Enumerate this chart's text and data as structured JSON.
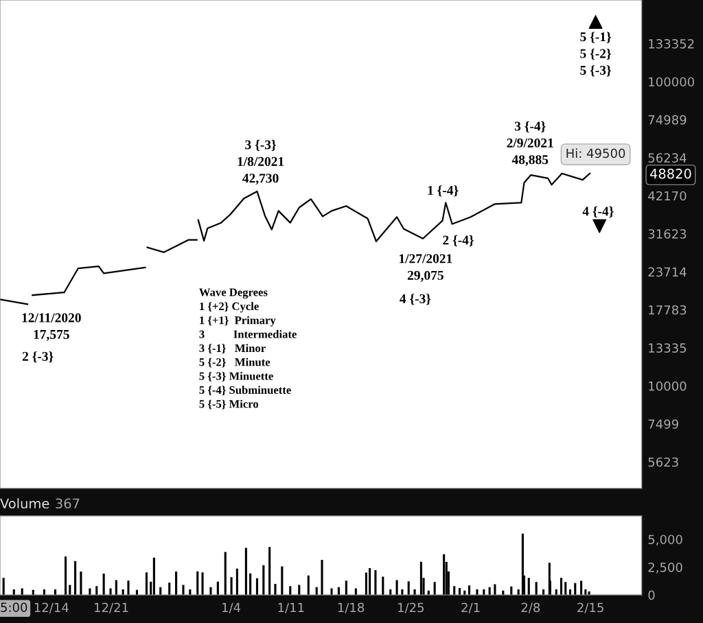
{
  "chart_data": [
    {
      "type": "line",
      "log": true,
      "grid": false,
      "tick_labels": "y",
      "xlim": [
        "2020-12-08",
        "2021-02-21"
      ],
      "xticks": [
        {
          "value": "2020-12-14",
          "label": null
        },
        {
          "value": "2020-12-21",
          "label": null
        },
        {
          "value": "2021-01-04",
          "label": null
        },
        {
          "value": "2021-01-11",
          "label": null
        },
        {
          "value": "2021-01-18",
          "label": null
        },
        {
          "value": "2021-01-25",
          "label": null
        },
        {
          "value": "2021-02-01",
          "label": null
        },
        {
          "value": "2021-02-08",
          "label": null
        },
        {
          "value": "2021-02-15",
          "label": null
        }
      ],
      "ylim": [
        4600,
        185465
      ],
      "yticks": [
        5623,
        7499,
        10000,
        13335,
        17783,
        23714,
        31623,
        42170,
        56234,
        74989,
        100000,
        133352
      ],
      "series": [
        {
          "color": "#000000",
          "x": [
            "2020-12-08T00:00",
            "2020-12-11T05:00",
            "2020-12-11T12:00",
            "2020-12-11T19:00",
            "2020-12-15T12:00",
            "2020-12-17T03:00",
            "2020-12-19T13:00",
            "2020-12-20T03:00",
            "2020-12-24T23:00",
            "2020-12-25T02:00",
            "2020-12-25T05:00",
            "2020-12-27T03:00",
            "2020-12-30T01:00",
            "2020-12-31T00:00",
            "2020-12-31T02:00",
            "2020-12-31T04:00",
            "2020-12-31T20:00",
            "2021-01-01T06:00",
            "2021-01-02T20:00",
            "2021-01-03T22:00",
            "2021-01-05T12:00",
            "2021-01-07T01:00",
            "2021-01-07T23:00",
            "2021-01-08T18:00",
            "2021-01-09T13:00",
            "2021-01-10T22:00",
            "2021-01-11T23:00",
            "2021-01-13T08:00",
            "2021-01-14T17:00",
            "2021-01-15T18:00",
            "2021-01-17T11:00",
            "2021-01-19T23:00",
            "2021-01-20T23:00",
            "2021-01-23T09:00",
            "2021-01-24T04:00",
            "2021-01-26T10:00",
            "2021-01-28T17:00",
            "2021-01-29T02:00",
            "2021-01-29T20:00",
            "2021-02-01T00:00",
            "2021-02-03T20:00",
            "2021-02-06T22:00",
            "2021-02-07T06:00",
            "2021-02-08T01:00",
            "2021-02-10T01:00",
            "2021-02-10T11:00",
            "2021-02-11T16:00",
            "2021-02-14T02:00",
            "2021-02-14T22:00"
          ],
          "values": [
            19230,
            18540,
            null,
            19860,
            20280,
            24320,
            24720,
            23440,
            24490,
            null,
            28510,
            27480,
            30190,
            30190,
            null,
            35080,
            29990,
            32960,
            34360,
            36600,
            41300,
            43550,
            36230,
            32640,
            37580,
            34360,
            38550,
            41120,
            36060,
            37580,
            38990,
            35480,
            29850,
            35890,
            32810,
            30480,
            34910,
            40000,
            34040,
            35890,
            39610,
            40000,
            46560,
            49320,
            48080,
            45810,
            49890,
            47530,
            49890
          ]
        }
      ],
      "annotations": [
        "12/11/2020\n17,575",
        "2 {-3}",
        "3 {-3}\n1/8/2021\n42,730",
        "1 {-4}",
        "2 {-4}",
        "1/27/2021\n29,075",
        "4 {-3}",
        "3 {-4}\n2/9/2021\n48,885",
        "4 {-4}",
        "5 {-1}\n5 {-2}\n5 {-3}",
        "Hi: 49500",
        "48820",
        "Wave Degrees\n1 {+2} Cycle\n1 {+1}  Primary\n3          Intermediate\n3 {-1}   Minor\n5 {-2}   Minute\n5 {-3} Minuette\n5 {-4} Subminuette\n5 {-5} Micro"
      ]
    },
    {
      "type": "bar",
      "title": "Volume",
      "subtitle": "367",
      "grid": false,
      "xlim": [
        "2020-12-08",
        "2021-02-21"
      ],
      "xticks": [
        {
          "value": "2020-12-14",
          "label": "12/14"
        },
        {
          "value": "2020-12-21",
          "label": "12/21"
        },
        {
          "value": "2021-01-04",
          "label": "1/4"
        },
        {
          "value": "2021-01-11",
          "label": "1/11"
        },
        {
          "value": "2021-01-18",
          "label": "1/18"
        },
        {
          "value": "2021-01-25",
          "label": "1/25"
        },
        {
          "value": "2021-02-01",
          "label": "2/1"
        },
        {
          "value": "2021-02-08",
          "label": "2/8"
        },
        {
          "value": "2021-02-15",
          "label": "2/15"
        }
      ],
      "ylim": [
        0,
        7100
      ],
      "yticks": [
        {
          "value": 0,
          "label": "0"
        },
        {
          "value": 2500,
          "label": "2,500"
        },
        {
          "value": 5000,
          "label": "5,000"
        }
      ],
      "annotations": [
        "5:00"
      ],
      "series": [
        {
          "color": "#000000",
          "x": [
            "2020-12-08T10:00",
            "2020-12-09T15:00",
            "2020-12-10T14:00",
            "2020-12-11T21:00",
            "2020-12-13T04:00",
            "2020-12-14T11:00",
            "2020-12-15T16:00",
            "2020-12-16T04:00",
            "2020-12-16T19:00",
            "2020-12-17T11:00",
            "2020-12-18T12:00",
            "2020-12-19T07:00",
            "2020-12-20T03:00",
            "2020-12-20T22:00",
            "2020-12-21T14:00",
            "2020-12-22T09:00",
            "2020-12-23T00:00",
            "2020-12-24T00:00",
            "2020-12-25T03:00",
            "2020-12-25T15:00",
            "2020-12-26T00:00",
            "2020-12-26T18:00",
            "2020-12-27T19:00",
            "2020-12-28T14:00",
            "2020-12-29T10:00",
            "2020-12-30T05:00",
            "2020-12-31T02:00",
            "2020-12-31T16:00",
            "2021-01-01T15:00",
            "2021-01-02T11:00",
            "2021-01-03T08:00",
            "2021-01-04T01:00",
            "2021-01-04T17:00",
            "2021-01-05T18:00",
            "2021-01-06T06:00",
            "2021-01-07T01:00",
            "2021-01-07T19:00",
            "2021-01-08T12:00",
            "2021-01-09T04:00",
            "2021-01-09T23:00",
            "2021-01-10T22:00",
            "2021-01-11T23:00",
            "2021-01-13T01:00",
            "2021-01-14T00:00",
            "2021-01-14T15:00",
            "2021-01-15T18:00",
            "2021-01-16T14:00",
            "2021-01-17T11:00",
            "2021-01-18T14:00",
            "2021-01-19T19:00",
            "2021-01-20T05:00",
            "2021-01-20T21:00",
            "2021-01-21T18:00",
            "2021-01-22T15:00",
            "2021-01-23T09:00",
            "2021-01-24T00:00",
            "2021-01-24T18:00",
            "2021-01-25T11:00",
            "2021-01-26T05:00",
            "2021-01-26T12:00",
            "2021-01-27T02:00",
            "2021-01-27T19:00",
            "2021-01-28T21:00",
            "2021-01-29T04:00",
            "2021-01-29T10:00",
            "2021-01-30T02:00",
            "2021-01-30T17:00",
            "2021-01-31T07:00",
            "2021-01-31T20:00",
            "2021-02-01T18:00",
            "2021-02-02T13:00",
            "2021-02-03T05:00",
            "2021-02-03T20:00",
            "2021-02-04T19:00",
            "2021-02-05T18:00",
            "2021-02-06T14:00",
            "2021-02-07T02:00",
            "2021-02-07T06:00",
            "2021-02-07T19:00",
            "2021-02-08T16:00",
            "2021-02-09T12:00",
            "2021-02-10T05:00",
            "2021-02-10T07:00",
            "2021-02-11T00:00",
            "2021-02-11T14:00",
            "2021-02-12T02:00",
            "2021-02-12T15:00",
            "2021-02-13T05:00",
            "2021-02-13T22:00",
            "2021-02-14T10:00",
            "2021-02-14T20:00"
          ],
          "values": [
            1540,
            500,
            600,
            450,
            500,
            500,
            3460,
            900,
            3040,
            2100,
            600,
            800,
            1910,
            600,
            1340,
            500,
            1280,
            450,
            2030,
            1200,
            3350,
            700,
            1100,
            2100,
            900,
            500,
            2120,
            2020,
            700,
            1200,
            3850,
            1600,
            2370,
            4220,
            1930,
            1500,
            2670,
            4300,
            1000,
            2570,
            800,
            900,
            1750,
            700,
            3150,
            600,
            700,
            1280,
            600,
            2010,
            2410,
            2220,
            1640,
            500,
            1340,
            500,
            1230,
            500,
            2980,
            1540,
            400,
            1170,
            3660,
            2960,
            2120,
            800,
            620,
            400,
            860,
            500,
            500,
            700,
            970,
            400,
            760,
            500,
            5510,
            1750,
            1540,
            1170,
            500,
            2880,
            1270,
            500,
            1540,
            1170,
            500,
            1070,
            1270,
            500,
            310
          ]
        }
      ]
    }
  ]
}
